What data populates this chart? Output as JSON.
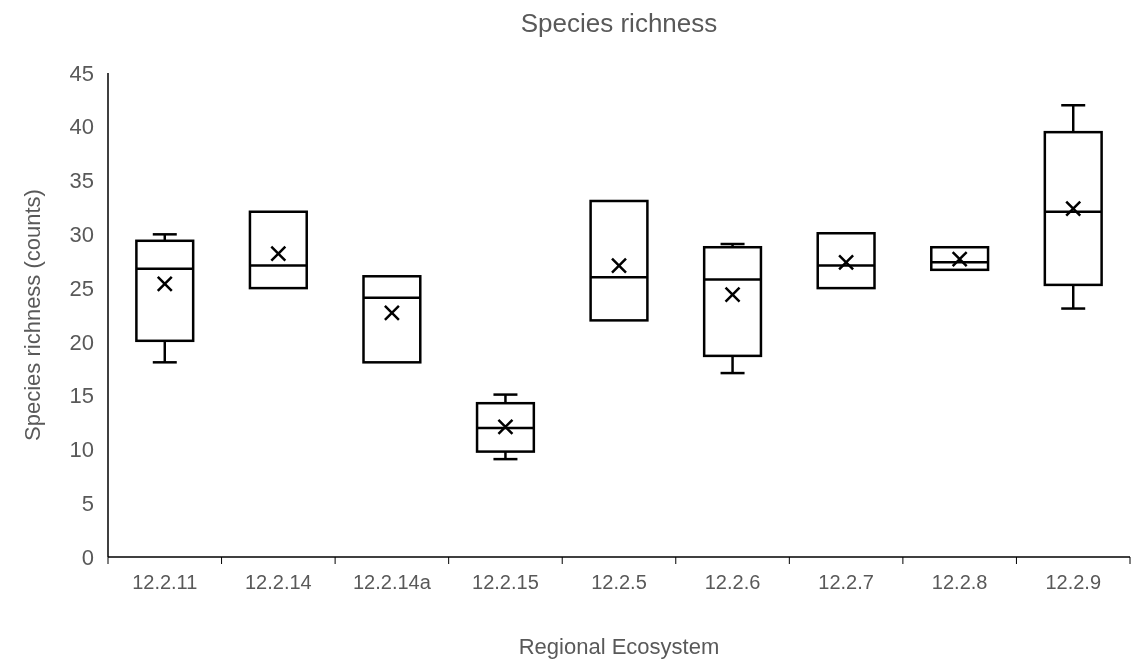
{
  "chart_data": {
    "type": "box",
    "title": "Species richness",
    "xlabel": "Regional Ecosystem",
    "ylabel": "Species richness (counts)",
    "categories": [
      "12.2.11",
      "12.2.14",
      "12.2.14a",
      "12.2.15",
      "12.2.5",
      "12.2.6",
      "12.2.7",
      "12.2.8",
      "12.2.9"
    ],
    "boxes": [
      {
        "low": 18.1,
        "q1": 20.1,
        "median": 26.8,
        "q3": 29.4,
        "high": 30.0,
        "mean": 25.4
      },
      {
        "low": 25.0,
        "q1": 25.0,
        "median": 27.1,
        "q3": 32.1,
        "high": 32.1,
        "mean": 28.2
      },
      {
        "low": 18.1,
        "q1": 18.1,
        "median": 24.1,
        "q3": 26.1,
        "high": 26.1,
        "mean": 22.7
      },
      {
        "low": 9.1,
        "q1": 9.8,
        "median": 12.0,
        "q3": 14.3,
        "high": 15.1,
        "mean": 12.1
      },
      {
        "low": 22.0,
        "q1": 22.0,
        "median": 26.0,
        "q3": 33.1,
        "high": 33.1,
        "mean": 27.1
      },
      {
        "low": 17.1,
        "q1": 18.7,
        "median": 25.8,
        "q3": 28.8,
        "high": 29.1,
        "mean": 24.4
      },
      {
        "low": 25.0,
        "q1": 25.0,
        "median": 27.1,
        "q3": 30.1,
        "high": 30.1,
        "mean": 27.4
      },
      {
        "low": 26.7,
        "q1": 26.7,
        "median": 27.4,
        "q3": 28.8,
        "high": 28.8,
        "mean": 27.7
      },
      {
        "low": 23.1,
        "q1": 25.3,
        "median": 32.1,
        "q3": 39.5,
        "high": 42.0,
        "mean": 32.4
      }
    ],
    "color": "#000000",
    "marker": "cross",
    "ylim": [
      0,
      45
    ],
    "yticks": [
      0,
      5,
      10,
      15,
      20,
      25,
      30,
      35,
      40,
      45
    ],
    "grid": false
  }
}
